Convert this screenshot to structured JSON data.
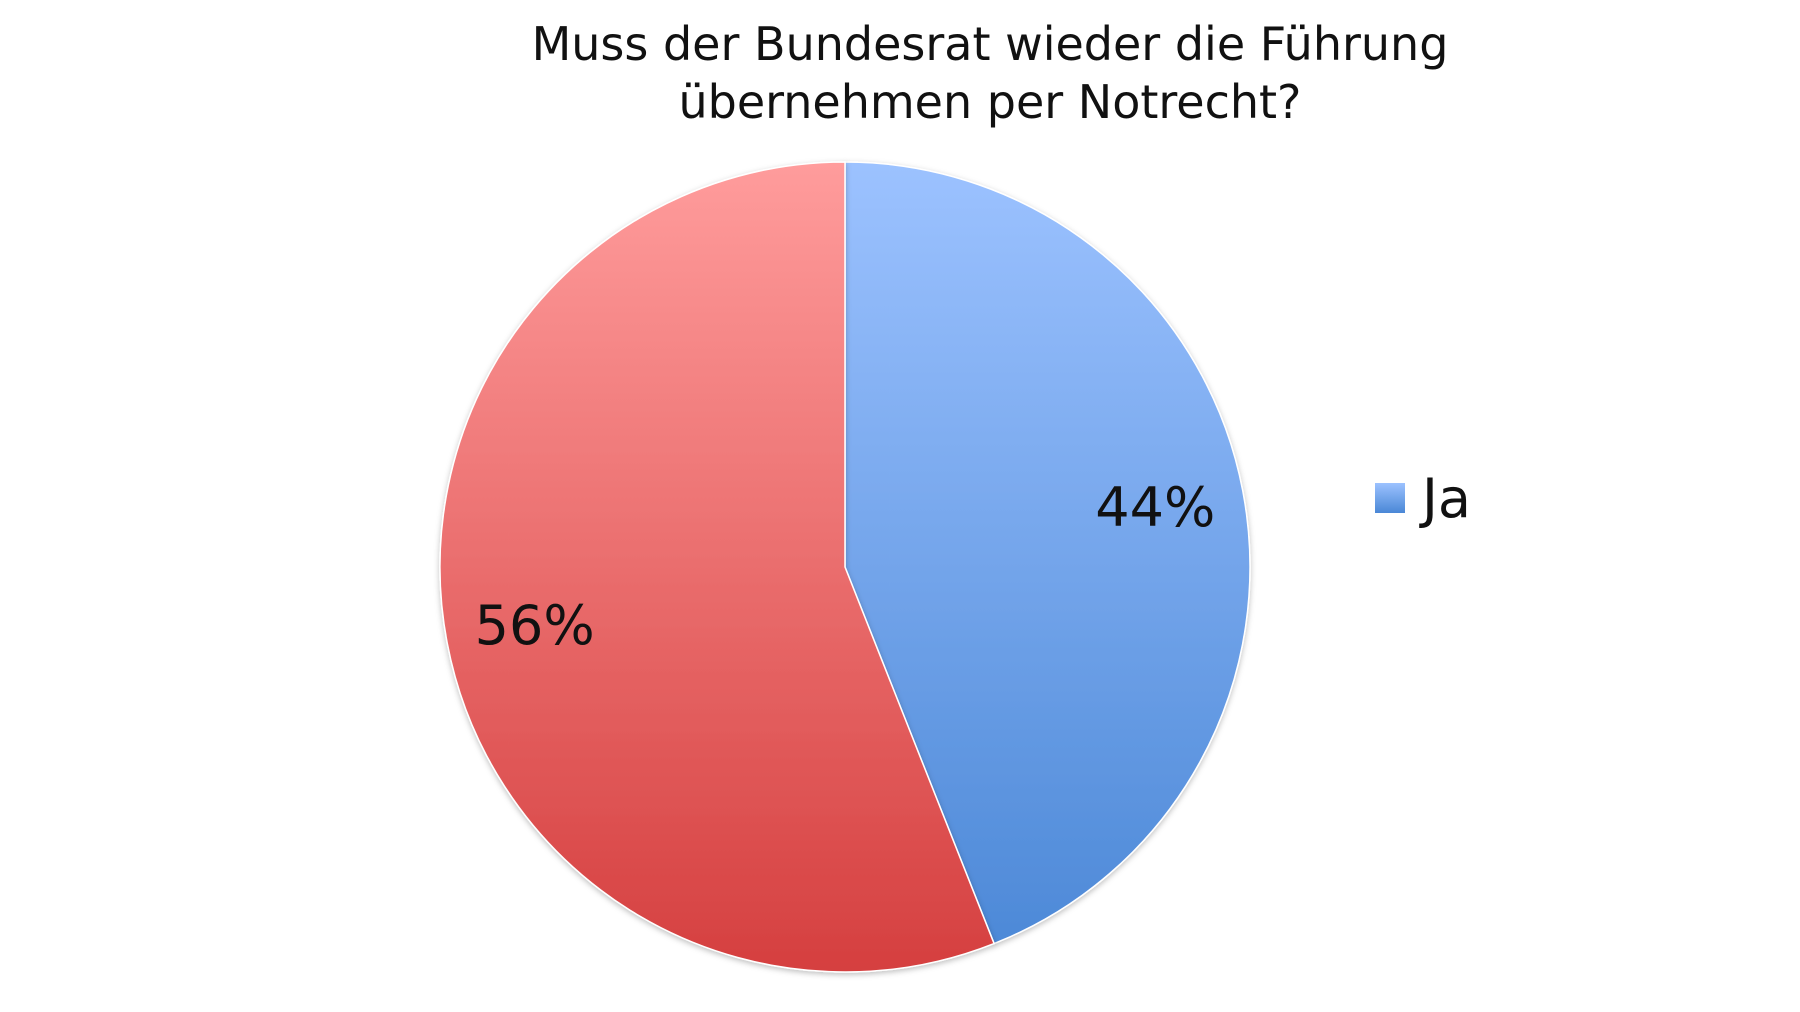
{
  "chart_data": {
    "type": "pie",
    "title_lines": [
      "Muss der Bundesrat wieder die Führung",
      "übernehmen per Notrecht?"
    ],
    "slices": [
      {
        "label": "Ja",
        "value": 44,
        "display": "44%",
        "color_top": "#9cc2ff",
        "color_bottom": "#4a87d6"
      },
      {
        "label": "",
        "value": 56,
        "display": "56%",
        "color_top": "#ff9c9c",
        "color_bottom": "#d53f3f"
      }
    ],
    "legend": [
      {
        "label": "Ja",
        "color": "#6fa3ea"
      }
    ],
    "legend_position": "right",
    "start_angle": "top",
    "direction": "clockwise"
  }
}
